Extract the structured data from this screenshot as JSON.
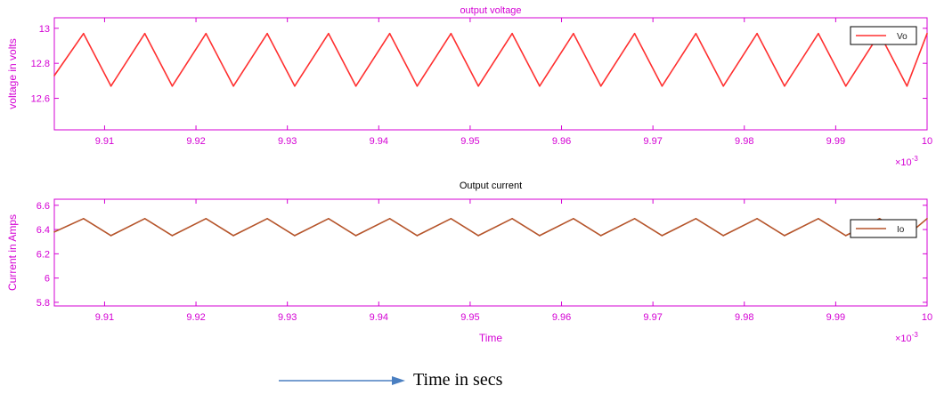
{
  "colors": {
    "axis": "#d400d4",
    "vo_line": "#ff3030",
    "io_line": "#b5542a",
    "arrow": "#4a7fc1"
  },
  "chart_data": [
    {
      "type": "line",
      "title": "output voltage",
      "xlabel": "",
      "ylabel": "voltage in volts",
      "xlim": [
        9.9045,
        10.0
      ],
      "ylim": [
        12.42,
        13.06
      ],
      "x_ticks": [
        9.91,
        9.92,
        9.93,
        9.94,
        9.95,
        9.96,
        9.97,
        9.98,
        9.99,
        10
      ],
      "x_tick_labels": [
        "9.91",
        "9.92",
        "9.93",
        "9.94",
        "9.95",
        "9.96",
        "9.97",
        "9.98",
        "9.99",
        "10"
      ],
      "y_ticks": [
        12.6,
        12.8,
        13
      ],
      "y_tick_labels": [
        "12.6",
        "12.8",
        "13"
      ],
      "x_exponent_label": "×10",
      "x_exponent_power": "-3",
      "grid": false,
      "legend_position": "top-right",
      "series": [
        {
          "name": "Vo",
          "x": [
            9.9045,
            9.9077,
            9.9107,
            9.9144,
            9.9174,
            9.9211,
            9.9241,
            9.9278,
            9.9308,
            9.9345,
            9.9375,
            9.9412,
            9.9442,
            9.9479,
            9.9509,
            9.9546,
            9.9576,
            9.9613,
            9.9643,
            9.968,
            9.971,
            9.9747,
            9.9777,
            9.9814,
            9.9844,
            9.9881,
            9.9911,
            9.9948,
            9.9978,
            10.0
          ],
          "y": [
            12.73,
            12.97,
            12.67,
            12.97,
            12.67,
            12.97,
            12.67,
            12.97,
            12.67,
            12.97,
            12.67,
            12.97,
            12.67,
            12.97,
            12.67,
            12.97,
            12.67,
            12.97,
            12.67,
            12.97,
            12.67,
            12.97,
            12.67,
            12.97,
            12.67,
            12.97,
            12.67,
            12.97,
            12.67,
            12.97
          ]
        }
      ]
    },
    {
      "type": "line",
      "title": "Output current",
      "xlabel": "Time",
      "ylabel": "Current in Amps",
      "xlim": [
        9.9045,
        10.0
      ],
      "ylim": [
        5.77,
        6.65
      ],
      "x_ticks": [
        9.91,
        9.92,
        9.93,
        9.94,
        9.95,
        9.96,
        9.97,
        9.98,
        9.99,
        10
      ],
      "x_tick_labels": [
        "9.91",
        "9.92",
        "9.93",
        "9.94",
        "9.95",
        "9.96",
        "9.97",
        "9.98",
        "9.99",
        "10"
      ],
      "y_ticks": [
        5.8,
        6,
        6.2,
        6.4,
        6.6
      ],
      "y_tick_labels": [
        "5.8",
        "6",
        "6.2",
        "6.4",
        "6.6"
      ],
      "x_exponent_label": "×10",
      "x_exponent_power": "-3",
      "grid": false,
      "legend_position": "top-right",
      "series": [
        {
          "name": "Io",
          "x": [
            9.9045,
            9.9077,
            9.9107,
            9.9144,
            9.9174,
            9.9211,
            9.9241,
            9.9278,
            9.9308,
            9.9345,
            9.9375,
            9.9412,
            9.9442,
            9.9479,
            9.9509,
            9.9546,
            9.9576,
            9.9613,
            9.9643,
            9.968,
            9.971,
            9.9747,
            9.9777,
            9.9814,
            9.9844,
            9.9881,
            9.9911,
            9.9948,
            9.9978,
            10.0
          ],
          "y": [
            6.38,
            6.49,
            6.35,
            6.49,
            6.35,
            6.49,
            6.35,
            6.49,
            6.35,
            6.49,
            6.35,
            6.49,
            6.35,
            6.49,
            6.35,
            6.49,
            6.35,
            6.49,
            6.35,
            6.49,
            6.35,
            6.49,
            6.35,
            6.49,
            6.35,
            6.49,
            6.35,
            6.49,
            6.35,
            6.49
          ]
        }
      ]
    }
  ],
  "caption": "Time in secs"
}
